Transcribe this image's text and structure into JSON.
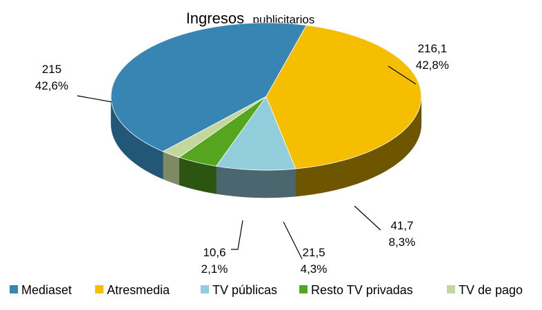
{
  "chart_data": {
    "type": "pie",
    "title": "Ingresos publicitarios",
    "title_main": "Ingresos",
    "title_sub": "publicitarios",
    "legend_position": "bottom",
    "start_angle_deg": -75,
    "slices": [
      {
        "name": "Atresmedia",
        "value": 216.1,
        "value_label": "216,1",
        "percent_label": "42,8%",
        "color": "#F6BE00",
        "dark": "#6E5500"
      },
      {
        "name": "TV públicas",
        "value": 41.7,
        "value_label": "41,7",
        "percent_label": "8,3%",
        "color": "#92CDDC",
        "dark": "#4C6670"
      },
      {
        "name": "Resto TV privadas",
        "value": 21.5,
        "value_label": "21,5",
        "percent_label": "4,3%",
        "color": "#55A51F",
        "dark": "#2C5511"
      },
      {
        "name": "TV de pago",
        "value": 10.6,
        "value_label": "10,6",
        "percent_label": "2,1%",
        "color": "#C3D69B",
        "dark": "#7E8A63"
      },
      {
        "name": "Mediaset",
        "value": 215,
        "value_label": "215",
        "percent_label": "42,6%",
        "color": "#3785B3",
        "dark": "#235778"
      }
    ],
    "legend_order": [
      "Mediaset",
      "Atresmedia",
      "TV públicas",
      "Resto TV privadas",
      "TV de pago"
    ]
  }
}
